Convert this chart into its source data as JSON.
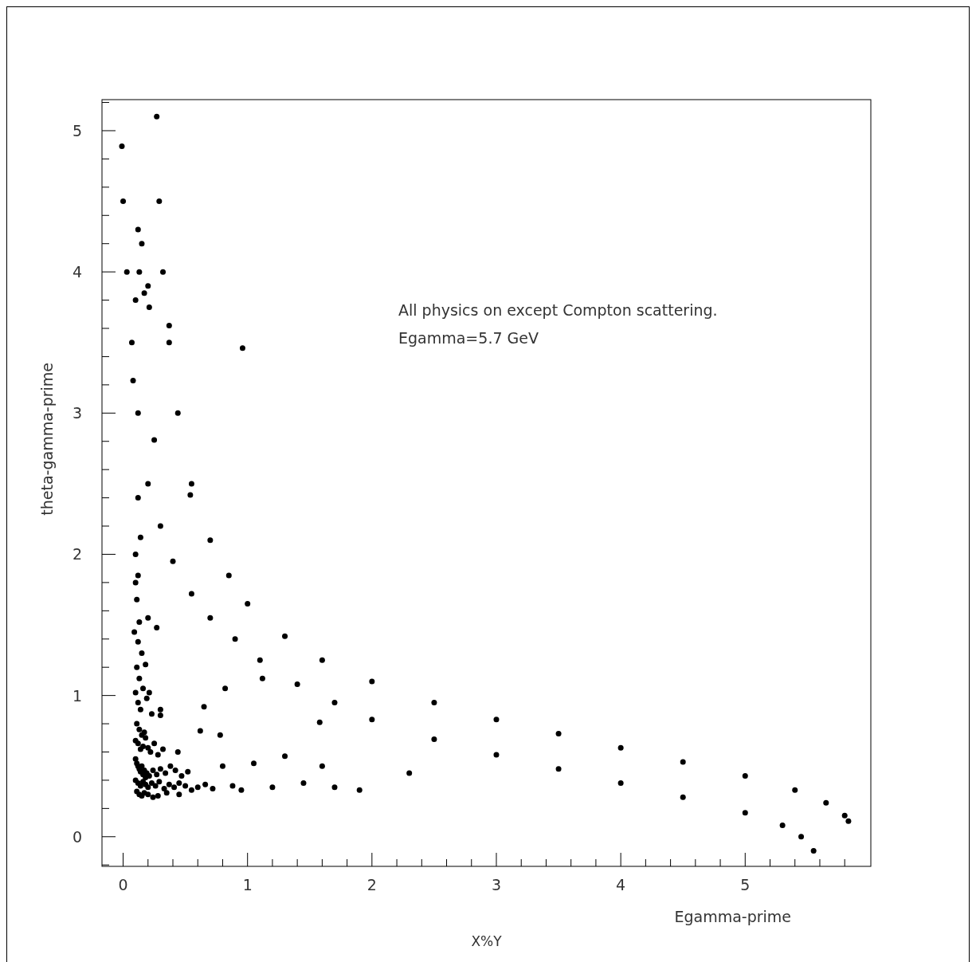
{
  "chart_data": {
    "type": "scatter",
    "xlabel": "Egamma-prime",
    "ylabel": "theta-gamma-prime",
    "annotations": [
      "All physics on except Compton scattering.",
      "Egamma=5.7 GeV",
      "X%Y"
    ],
    "xlim": [
      -0.17,
      6.01
    ],
    "ylim": [
      -0.21,
      5.22
    ],
    "xticks": [
      0,
      {
        "value": 0.2,
        "label": null
      },
      {
        "value": 0.4,
        "label": null
      },
      {
        "value": 0.6,
        "label": null
      },
      {
        "value": 0.8,
        "label": null
      },
      1,
      {
        "value": 1.2,
        "label": null
      },
      {
        "value": 1.4,
        "label": null
      },
      {
        "value": 1.6,
        "label": null
      },
      {
        "value": 1.8,
        "label": null
      },
      2,
      {
        "value": 2.2,
        "label": null
      },
      {
        "value": 2.4,
        "label": null
      },
      {
        "value": 2.6,
        "label": null
      },
      {
        "value": 2.8,
        "label": null
      },
      3,
      {
        "value": 3.2,
        "label": null
      },
      {
        "value": 3.4,
        "label": null
      },
      {
        "value": 3.6,
        "label": null
      },
      {
        "value": 3.8,
        "label": null
      },
      4,
      {
        "value": 4.2,
        "label": null
      },
      {
        "value": 4.4,
        "label": null
      },
      {
        "value": 4.6,
        "label": null
      },
      {
        "value": 4.8,
        "label": null
      },
      5,
      {
        "value": 5.2,
        "label": null
      },
      {
        "value": 5.4,
        "label": null
      },
      {
        "value": 5.6,
        "label": null
      },
      {
        "value": 5.8,
        "label": null
      }
    ],
    "yticks": [
      {
        "value": -0.2,
        "label": null
      },
      0,
      {
        "value": 0.2,
        "label": null
      },
      {
        "value": 0.4,
        "label": null
      },
      {
        "value": 0.6,
        "label": null
      },
      {
        "value": 0.8,
        "label": null
      },
      1,
      {
        "value": 1.2,
        "label": null
      },
      {
        "value": 1.4,
        "label": null
      },
      {
        "value": 1.6,
        "label": null
      },
      {
        "value": 1.8,
        "label": null
      },
      2,
      {
        "value": 2.2,
        "label": null
      },
      {
        "value": 2.4,
        "label": null
      },
      {
        "value": 2.6,
        "label": null
      },
      {
        "value": 2.8,
        "label": null
      },
      3,
      {
        "value": 3.2,
        "label": null
      },
      {
        "value": 3.4,
        "label": null
      },
      {
        "value": 3.6,
        "label": null
      },
      {
        "value": 3.8,
        "label": null
      },
      4,
      {
        "value": 4.2,
        "label": null
      },
      {
        "value": 4.4,
        "label": null
      },
      {
        "value": 4.6,
        "label": null
      },
      {
        "value": 4.8,
        "label": null
      },
      5,
      {
        "value": 5.2,
        "label": null
      }
    ],
    "grid": false,
    "marker": "circle",
    "series": [
      {
        "color": "#000000",
        "x": [
          -0.01,
          0.0,
          0.03,
          0.07,
          0.12,
          0.2,
          0.3,
          0.4,
          0.55,
          0.7,
          0.9,
          1.1,
          1.4,
          1.7,
          2.0,
          2.5,
          3.0,
          3.5,
          4.0,
          4.5,
          5.0,
          5.3,
          5.45,
          5.55
        ],
        "values": [
          4.89,
          4.5,
          4.0,
          3.5,
          3.0,
          2.5,
          2.2,
          1.95,
          1.72,
          1.55,
          1.4,
          1.25,
          1.08,
          0.95,
          0.83,
          0.69,
          0.58,
          0.48,
          0.38,
          0.28,
          0.17,
          0.08,
          0.0,
          -0.1
        ]
      },
      {
        "color": "#000000",
        "x": [
          0.27,
          0.29,
          0.32,
          0.37,
          0.44,
          0.55,
          0.7,
          0.85,
          1.0,
          1.3,
          1.6,
          2.0,
          2.5,
          3.0,
          3.5,
          4.0,
          4.5,
          5.0,
          5.4,
          5.65,
          5.8,
          5.83
        ],
        "values": [
          5.1,
          4.5,
          4.0,
          3.5,
          3.0,
          2.5,
          2.1,
          1.85,
          1.65,
          1.42,
          1.25,
          1.1,
          0.95,
          0.83,
          0.73,
          0.63,
          0.53,
          0.43,
          0.33,
          0.24,
          0.15,
          0.11
        ]
      },
      {
        "color": "#000000",
        "x": [
          0.12,
          0.15,
          0.2,
          0.17,
          0.1,
          0.13,
          0.21,
          0.37,
          0.96,
          0.08,
          0.12,
          0.25,
          0.54,
          0.1,
          0.14,
          0.12,
          0.1,
          0.11,
          0.13,
          0.09,
          0.2,
          0.27,
          0.12,
          0.15,
          0.18,
          0.11,
          0.13,
          0.16,
          0.1,
          0.12,
          0.14,
          0.19,
          0.23,
          0.3,
          0.11,
          0.13,
          0.15,
          0.17,
          0.1,
          0.12,
          0.14,
          0.16,
          0.18,
          0.2,
          0.22,
          0.25,
          0.28,
          0.32,
          0.1,
          0.11,
          0.12,
          0.13,
          0.14,
          0.15,
          0.16,
          0.17,
          0.18,
          0.19,
          0.21,
          0.24,
          0.27,
          0.3,
          0.34,
          0.38,
          0.42,
          0.47,
          0.52,
          0.1,
          0.12,
          0.14,
          0.16,
          0.18,
          0.2,
          0.23,
          0.26,
          0.29,
          0.33,
          0.37,
          0.41,
          0.45,
          0.5,
          0.55,
          0.6,
          0.66,
          0.72,
          0.8,
          0.88,
          0.95,
          1.05,
          1.2,
          1.3,
          1.45,
          1.6,
          1.7,
          1.9,
          2.3,
          0.11,
          0.13,
          0.15,
          0.17,
          0.2,
          0.24,
          0.28,
          0.35,
          0.45,
          0.62,
          0.78,
          0.82,
          1.58,
          1.12,
          0.65,
          0.44,
          0.3,
          0.21
        ],
        "values": [
          4.3,
          4.2,
          3.9,
          3.85,
          3.8,
          4.0,
          3.75,
          3.62,
          3.46,
          3.23,
          2.4,
          2.81,
          2.42,
          2.0,
          2.12,
          1.85,
          1.8,
          1.68,
          1.52,
          1.45,
          1.55,
          1.48,
          1.38,
          1.3,
          1.22,
          1.2,
          1.12,
          1.05,
          1.02,
          0.95,
          0.9,
          0.98,
          0.87,
          0.86,
          0.8,
          0.76,
          0.72,
          0.74,
          0.68,
          0.66,
          0.62,
          0.64,
          0.7,
          0.63,
          0.6,
          0.66,
          0.58,
          0.62,
          0.55,
          0.52,
          0.5,
          0.48,
          0.46,
          0.5,
          0.44,
          0.47,
          0.42,
          0.45,
          0.43,
          0.47,
          0.44,
          0.48,
          0.45,
          0.5,
          0.47,
          0.43,
          0.46,
          0.4,
          0.38,
          0.36,
          0.39,
          0.37,
          0.35,
          0.38,
          0.36,
          0.39,
          0.34,
          0.37,
          0.35,
          0.38,
          0.36,
          0.33,
          0.35,
          0.37,
          0.34,
          0.5,
          0.36,
          0.33,
          0.52,
          0.35,
          0.57,
          0.38,
          0.5,
          0.35,
          0.33,
          0.45,
          0.32,
          0.3,
          0.29,
          0.31,
          0.3,
          0.28,
          0.29,
          0.31,
          0.3,
          0.75,
          0.72,
          1.05,
          0.81,
          1.12,
          0.92,
          0.6,
          0.9,
          1.02
        ]
      }
    ]
  }
}
